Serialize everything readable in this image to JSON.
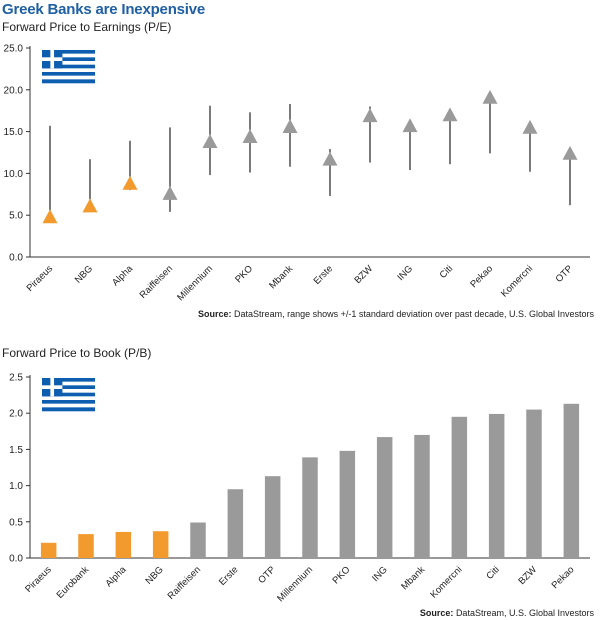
{
  "title": "Greek Banks are Inexpensive",
  "colors": {
    "greek": "#f29a2e",
    "other": "#9a9a9a",
    "range_line": "#222222",
    "title": "#1f5fa3",
    "flag_blue": "#0d5eaf"
  },
  "chart_data": [
    {
      "type": "scatter",
      "title": "Forward Price to Earnings (P/E)",
      "categories": [
        "Piraeus",
        "NBG",
        "Alpha",
        "Raiffeisen",
        "Millennium",
        "PKO",
        "Mbank",
        "Erste",
        "BZW",
        "ING",
        "Citi",
        "Pekao",
        "Komercni",
        "OTP"
      ],
      "values": [
        4.8,
        6.1,
        8.8,
        7.6,
        13.8,
        14.4,
        15.6,
        11.7,
        16.9,
        15.7,
        17.0,
        19.1,
        15.5,
        12.4
      ],
      "range_high": [
        15.7,
        11.7,
        13.9,
        15.5,
        18.1,
        17.3,
        18.3,
        12.9,
        18.0,
        15.9,
        17.0,
        19.3,
        15.6,
        12.6
      ],
      "range_low": [
        4.8,
        6.1,
        8.0,
        5.4,
        9.8,
        10.1,
        10.8,
        7.3,
        11.3,
        10.4,
        11.1,
        12.4,
        10.2,
        6.2
      ],
      "highlight": [
        "Piraeus",
        "NBG",
        "Alpha"
      ],
      "ylim": [
        0,
        25
      ],
      "yticks": [
        "0.0",
        "5.0",
        "10.0",
        "15.0",
        "20.0",
        "25.0"
      ],
      "source_label": "Source:",
      "source_text": "DataStream, range shows +/-1 standard deviation over past decade, U.S. Global Investors"
    },
    {
      "type": "bar",
      "title": "Forward Price to Book (P/B)",
      "categories": [
        "Piraeus",
        "Eurobank",
        "Alpha",
        "NBG",
        "Raiffeisen",
        "Erste",
        "OTP",
        "Millennium",
        "PKO",
        "ING",
        "Mbank",
        "Komercni",
        "Citi",
        "BZW",
        "Pekao"
      ],
      "values": [
        0.21,
        0.33,
        0.36,
        0.37,
        0.49,
        0.95,
        1.13,
        1.39,
        1.48,
        1.67,
        1.7,
        1.95,
        1.99,
        2.05,
        2.13
      ],
      "highlight": [
        "Piraeus",
        "Eurobank",
        "Alpha",
        "NBG"
      ],
      "ylim": [
        0,
        2.5
      ],
      "yticks": [
        "0.0",
        "0.5",
        "1.0",
        "1.5",
        "2.0",
        "2.5"
      ],
      "source_label": "Source:",
      "source_text": "DataStream, U.S. Global Investors"
    }
  ]
}
